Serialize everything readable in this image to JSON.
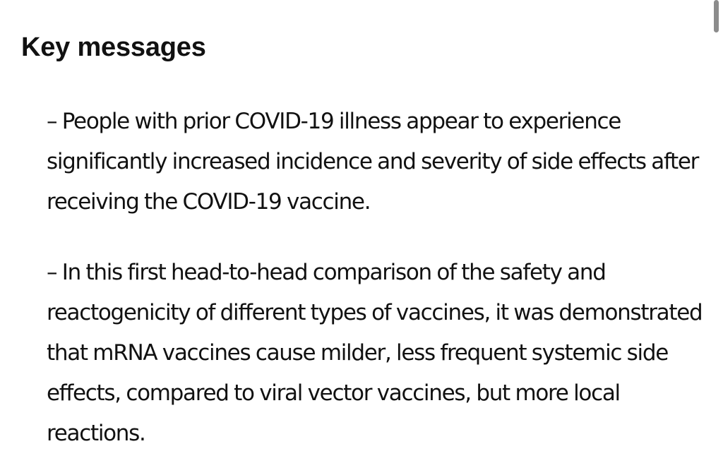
{
  "heading": "Key messages",
  "messages": [
    {
      "text": "– People with prior COVID-19 illness appear to experience significantly increased incidence and severity of side effects after receiving the COVID-19 vaccine."
    },
    {
      "text": "– In this first head-to-head comparison of the safety and reactogenicity of different types of vaccines, it was demonstrated that mRNA vaccines cause milder, less frequent systemic side effects, compared to viral vector vaccines, but more local reactions."
    }
  ]
}
